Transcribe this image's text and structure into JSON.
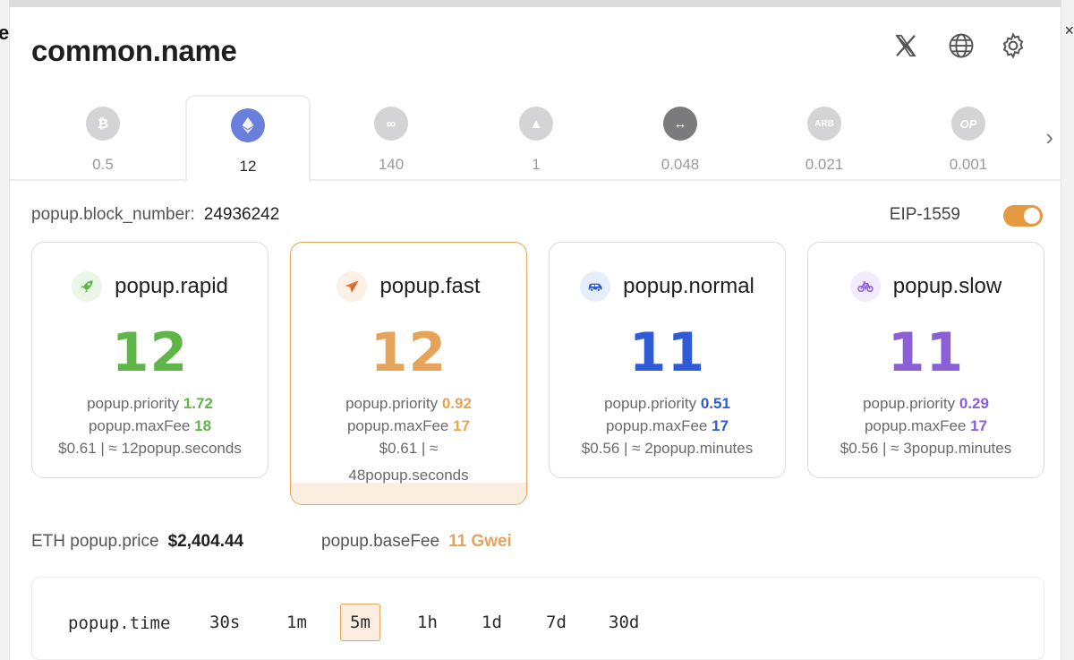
{
  "header": {
    "title": "common.name"
  },
  "tabs": [
    {
      "symbol": "₿",
      "value": "0.5"
    },
    {
      "symbol": "",
      "value": "12"
    },
    {
      "symbol": "∞",
      "value": "140"
    },
    {
      "symbol": "▲",
      "value": "1"
    },
    {
      "symbol": "↔",
      "value": "0.048"
    },
    {
      "symbol": "ARB",
      "value": "0.021"
    },
    {
      "symbol": "OP",
      "value": "0.001"
    }
  ],
  "block": {
    "label": "popup.block_number:",
    "number": "24936242"
  },
  "eip": {
    "label": "EIP-1559",
    "enabled": true
  },
  "cards": [
    {
      "name": "popup.rapid",
      "gwei": "12",
      "priority_label": "popup.priority",
      "priority": "1.72",
      "maxfee_label": "popup.maxFee",
      "maxfee": "18",
      "cost": "$0.61 | ≈ 12popup.seconds",
      "color": "#5fb548"
    },
    {
      "name": "popup.fast",
      "gwei": "12",
      "priority_label": "popup.priority",
      "priority": "0.92",
      "maxfee_label": "popup.maxFee",
      "maxfee": "17",
      "cost": "$0.61 | ≈ 48popup.seconds",
      "color": "#e5a45a"
    },
    {
      "name": "popup.normal",
      "gwei": "11",
      "priority_label": "popup.priority",
      "priority": "0.51",
      "maxfee_label": "popup.maxFee",
      "maxfee": "17",
      "cost": "$0.56 | ≈ 2popup.minutes",
      "color": "#2f5bd6"
    },
    {
      "name": "popup.slow",
      "gwei": "11",
      "priority_label": "popup.priority",
      "priority": "0.29",
      "maxfee_label": "popup.maxFee",
      "maxfee": "17",
      "cost": "$0.56 | ≈ 3popup.minutes",
      "color": "#8a5fd8"
    }
  ],
  "price": {
    "label": "ETH popup.price",
    "value": "$2,404.44"
  },
  "basefee": {
    "label": "popup.baseFee",
    "value": "11 Gwei"
  },
  "time": {
    "label": "popup.time",
    "options": [
      "30s",
      "1m",
      "5m",
      "1h",
      "1d",
      "7d",
      "30d"
    ],
    "selected": "5m"
  }
}
